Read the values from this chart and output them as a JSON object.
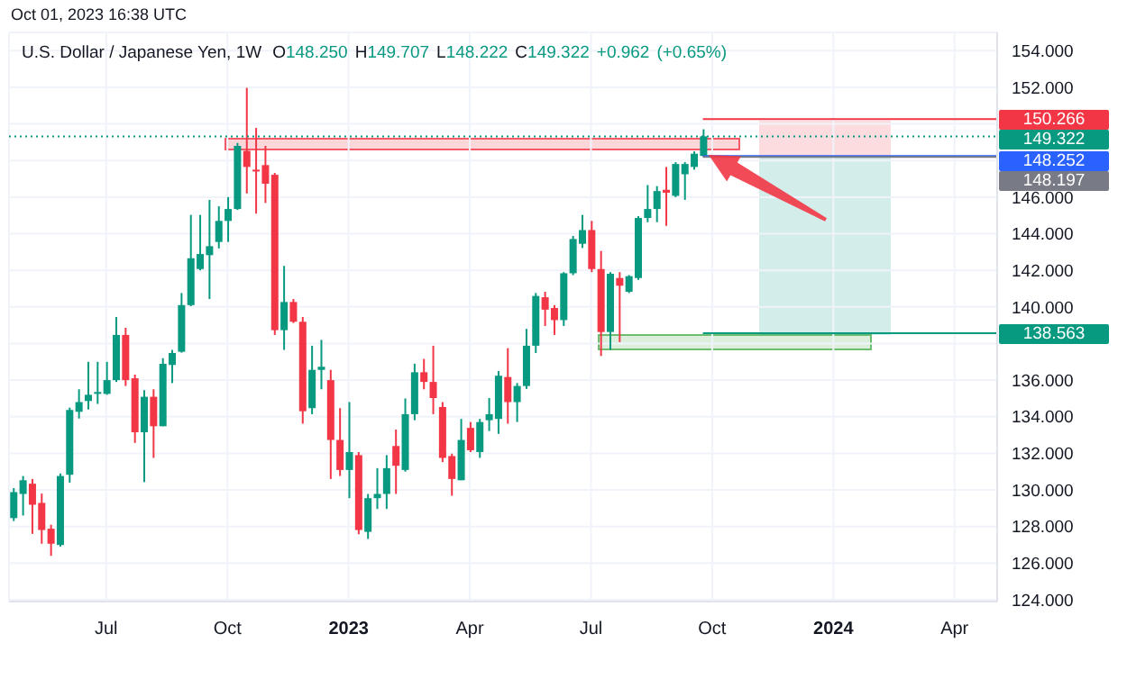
{
  "chart_data": {
    "type": "candlestick",
    "title": "U.S. Dollar / Japanese Yen, 1W",
    "annotations": [
      "Oct 01, 2023 16:38 UTC",
      "O148.250 H149.707 L148.222 C149.322 +0.962 (+0.65%)"
    ],
    "x": [
      "2022-04-25",
      "2022-05-02",
      "2022-05-09",
      "2022-05-16",
      "2022-05-23",
      "2022-05-30",
      "2022-06-06",
      "2022-06-13",
      "2022-06-20",
      "2022-06-27",
      "2022-07-04",
      "2022-07-11",
      "2022-07-18",
      "2022-07-25",
      "2022-08-01",
      "2022-08-08",
      "2022-08-15",
      "2022-08-22",
      "2022-08-29",
      "2022-09-05",
      "2022-09-12",
      "2022-09-19",
      "2022-09-26",
      "2022-10-03",
      "2022-10-10",
      "2022-10-17",
      "2022-10-24",
      "2022-10-31",
      "2022-11-07",
      "2022-11-14",
      "2022-11-21",
      "2022-11-28",
      "2022-12-05",
      "2022-12-12",
      "2022-12-19",
      "2022-12-26",
      "2023-01-02",
      "2023-01-09",
      "2023-01-16",
      "2023-01-23",
      "2023-01-30",
      "2023-02-06",
      "2023-02-13",
      "2023-02-20",
      "2023-02-27",
      "2023-03-06",
      "2023-03-13",
      "2023-03-20",
      "2023-03-27",
      "2023-04-03",
      "2023-04-10",
      "2023-04-17",
      "2023-04-24",
      "2023-05-01",
      "2023-05-08",
      "2023-05-15",
      "2023-05-22",
      "2023-05-29",
      "2023-06-05",
      "2023-06-12",
      "2023-06-19",
      "2023-06-26",
      "2023-07-03",
      "2023-07-10",
      "2023-07-17",
      "2023-07-24",
      "2023-07-31",
      "2023-08-07",
      "2023-08-14",
      "2023-08-21",
      "2023-08-28",
      "2023-09-04",
      "2023-09-11",
      "2023-09-18",
      "2023-09-25"
    ],
    "ohlc": [
      [
        128.46,
        130.1,
        128.3,
        129.88
      ],
      [
        129.78,
        130.76,
        128.6,
        130.53
      ],
      [
        130.34,
        130.6,
        127.6,
        129.19
      ],
      [
        129.29,
        129.8,
        127.06,
        127.81
      ],
      [
        127.88,
        128.1,
        126.4,
        127.06
      ],
      [
        126.99,
        130.9,
        126.9,
        130.76
      ],
      [
        130.83,
        134.5,
        130.4,
        134.37
      ],
      [
        134.27,
        135.5,
        133.9,
        134.8
      ],
      [
        134.86,
        137.0,
        134.4,
        135.2
      ],
      [
        135.25,
        137.0,
        134.7,
        135.35
      ],
      [
        135.25,
        137.0,
        135.2,
        136.0
      ],
      [
        136.0,
        139.45,
        135.9,
        138.47
      ],
      [
        138.47,
        138.86,
        135.68,
        136.0
      ],
      [
        136.1,
        136.3,
        132.57,
        133.15
      ],
      [
        133.15,
        135.45,
        130.43,
        135.09
      ],
      [
        135.09,
        135.5,
        131.75,
        133.48
      ],
      [
        133.48,
        137.2,
        133.48,
        136.89
      ],
      [
        136.83,
        137.65,
        135.84,
        137.48
      ],
      [
        137.55,
        140.76,
        137.5,
        140.1
      ],
      [
        140.1,
        145.03,
        140.04,
        142.66
      ],
      [
        142.07,
        145.03,
        142.0,
        142.89
      ],
      [
        142.83,
        145.85,
        140.43,
        143.32
      ],
      [
        143.55,
        145.5,
        143.2,
        144.7
      ],
      [
        144.7,
        146.0,
        143.55,
        145.35
      ],
      [
        145.35,
        148.96,
        145.3,
        148.8
      ],
      [
        148.53,
        151.97,
        146.2,
        147.65
      ],
      [
        147.5,
        149.78,
        145.1,
        147.4
      ],
      [
        147.75,
        148.8,
        145.68,
        146.73
      ],
      [
        147.22,
        147.32,
        138.47,
        138.73
      ],
      [
        138.73,
        142.24,
        137.65,
        140.27
      ],
      [
        140.27,
        140.43,
        139.12,
        139.19
      ],
      [
        139.19,
        139.45,
        133.62,
        134.3
      ],
      [
        134.47,
        137.88,
        134.14,
        136.56
      ],
      [
        136.56,
        138.2,
        135.5,
        136.73
      ],
      [
        136.0,
        136.56,
        130.6,
        132.73
      ],
      [
        132.73,
        134.47,
        130.76,
        131.09
      ],
      [
        131.09,
        134.8,
        129.55,
        132.07
      ],
      [
        131.9,
        132.07,
        127.58,
        127.81
      ],
      [
        127.71,
        129.78,
        127.32,
        129.55
      ],
      [
        129.55,
        131.19,
        128.96,
        129.78
      ],
      [
        129.78,
        131.9,
        128.96,
        131.19
      ],
      [
        132.4,
        133.3,
        129.78,
        131.32
      ],
      [
        131.09,
        135.0,
        131.0,
        134.14
      ],
      [
        134.14,
        136.9,
        133.81,
        136.43
      ],
      [
        136.43,
        137.16,
        135.5,
        135.9
      ],
      [
        135.9,
        137.88,
        134.14,
        135.02
      ],
      [
        134.53,
        134.8,
        131.52,
        131.75
      ],
      [
        131.85,
        131.98,
        129.68,
        130.6
      ],
      [
        130.53,
        133.88,
        130.53,
        132.73
      ],
      [
        133.39,
        133.71,
        132.07,
        132.17
      ],
      [
        132.07,
        133.88,
        131.75,
        133.71
      ],
      [
        133.81,
        135.02,
        133.22,
        134.14
      ],
      [
        133.88,
        136.5,
        133.06,
        136.24
      ],
      [
        136.17,
        137.75,
        133.62,
        134.8
      ],
      [
        134.8,
        135.84,
        133.71,
        135.68
      ],
      [
        135.68,
        138.8,
        135.52,
        137.88
      ],
      [
        137.88,
        140.76,
        137.48,
        140.6
      ],
      [
        140.53,
        140.83,
        138.96,
        139.85
      ],
      [
        139.94,
        140.1,
        138.47,
        139.28
      ],
      [
        139.28,
        141.9,
        138.96,
        141.84
      ],
      [
        141.84,
        143.88,
        141.74,
        143.71
      ],
      [
        143.45,
        145.03,
        143.22,
        144.2
      ],
      [
        144.2,
        144.7,
        141.9,
        142.07
      ],
      [
        142.07,
        143.06,
        137.32,
        138.63
      ],
      [
        138.63,
        141.9,
        137.65,
        141.81
      ],
      [
        141.58,
        141.9,
        138.08,
        141.16
      ],
      [
        140.83,
        141.74,
        140.76,
        141.68
      ],
      [
        141.58,
        144.96,
        141.48,
        144.86
      ],
      [
        144.86,
        146.66,
        144.63,
        145.35
      ],
      [
        145.35,
        146.6,
        144.63,
        146.33
      ],
      [
        146.4,
        147.65,
        144.43,
        146.24
      ],
      [
        146.07,
        147.91,
        146.0,
        147.81
      ],
      [
        147.25,
        147.91,
        145.85,
        147.81
      ],
      [
        147.65,
        148.5,
        147.5,
        148.37
      ],
      [
        148.25,
        149.707,
        148.222,
        149.322
      ]
    ],
    "colors": [
      "#089981",
      "#089981",
      "#f23645",
      "#f23645",
      "#f23645",
      "#089981",
      "#089981",
      "#089981",
      "#089981",
      "#089981",
      "#089981",
      "#089981",
      "#f23645",
      "#f23645",
      "#089981",
      "#f23645",
      "#089981",
      "#089981",
      "#089981",
      "#089981",
      "#089981",
      "#089981",
      "#089981",
      "#089981",
      "#089981",
      "#f23645",
      "#f23645",
      "#f23645",
      "#f23645",
      "#089981",
      "#f23645",
      "#f23645",
      "#089981",
      "#089981",
      "#f23645",
      "#f23645",
      "#089981",
      "#f23645",
      "#089981",
      "#089981",
      "#089981",
      "#f23645",
      "#089981",
      "#089981",
      "#f23645",
      "#f23645",
      "#f23645",
      "#f23645",
      "#089981",
      "#f23645",
      "#089981",
      "#089981",
      "#089981",
      "#f23645",
      "#089981",
      "#089981",
      "#089981",
      "#f23645",
      "#f23645",
      "#089981",
      "#089981",
      "#089981",
      "#f23645",
      "#f23645",
      "#089981",
      "#f23645",
      "#089981",
      "#089981",
      "#089981",
      "#089981",
      "#f23645",
      "#089981",
      "#089981",
      "#089981",
      "#089981"
    ],
    "xlim": [
      "2022-04-22",
      "2024-05-03"
    ],
    "xticks": [
      {
        "value": "2022-07-04",
        "label": "Jul"
      },
      {
        "value": "2022-10-03",
        "label": "Oct"
      },
      {
        "value": "2023-01-02",
        "label": "2023"
      },
      {
        "value": "2023-04-03",
        "label": "Apr"
      },
      {
        "value": "2023-07-03",
        "label": "Jul"
      },
      {
        "value": "2023-10-02",
        "label": "Oct"
      },
      {
        "value": "2024-01-01",
        "label": "2024"
      },
      {
        "value": "2024-04-01",
        "label": "Apr"
      }
    ],
    "ylim": [
      123.9,
      155
    ],
    "yticks": [
      {
        "value": 124,
        "label": "124.000"
      },
      {
        "value": 126,
        "label": "126.000"
      },
      {
        "value": 128,
        "label": "128.000"
      },
      {
        "value": 130,
        "label": "130.000"
      },
      {
        "value": 132,
        "label": "132.000"
      },
      {
        "value": 134,
        "label": "134.000"
      },
      {
        "value": 136,
        "label": "136.000"
      },
      {
        "value": 138,
        "label": null
      },
      {
        "value": 140,
        "label": "140.000"
      },
      {
        "value": 142,
        "label": "142.000"
      },
      {
        "value": 144,
        "label": "144.000"
      },
      {
        "value": 146,
        "label": "146.000"
      },
      {
        "value": 148,
        "label": null
      },
      {
        "value": 150,
        "label": null
      },
      {
        "value": 152,
        "label": "152.000"
      },
      {
        "value": 154,
        "label": "154.000"
      }
    ],
    "grid": true,
    "ref_lines": [
      {
        "axis": "y",
        "value": 150.266,
        "label": "150.266",
        "color": "#f23645",
        "line_style": "solid"
      },
      {
        "axis": "y",
        "value": 149.322,
        "label": "149.322",
        "color": "#089981",
        "line_style": "dotted"
      },
      {
        "axis": "y",
        "value": 148.252,
        "label": "148.252",
        "color": "#2962ff",
        "line_style": "solid"
      },
      {
        "axis": "y",
        "value": 148.197,
        "label": "148.197",
        "color": "#787b86",
        "line_style": "solid"
      },
      {
        "axis": "y",
        "value": 138.563,
        "label": "138.563",
        "color": "#089981",
        "line_style": "solid"
      }
    ]
  }
}
